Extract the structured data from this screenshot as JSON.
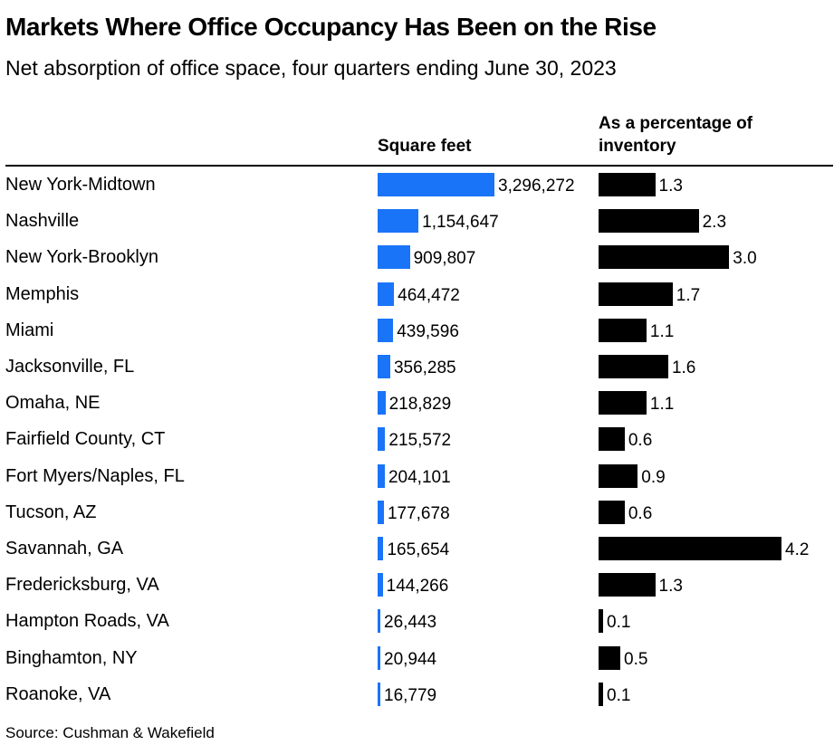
{
  "header": {
    "title": "Markets Where Office Occupancy Has Been on the Rise",
    "subtitle": "Net absorption of office space, four quarters ending June 30, 2023"
  },
  "columns": {
    "square_feet": "Square feet",
    "percentage_line1": "As a percentage of",
    "percentage_line2": "inventory"
  },
  "colors": {
    "square_feet_bar": "#1a74f8",
    "percentage_bar": "#000000"
  },
  "footer": {
    "source": "Source: Cushman & Wakefield"
  },
  "chart_data": {
    "type": "bar",
    "orientation": "horizontal",
    "title": "Markets Where Office Occupancy Has Been on the Rise",
    "subtitle": "Net absorption of office space, four quarters ending June 30, 2023",
    "categories": [
      "New York-Midtown",
      "Nashville",
      "New York-Brooklyn",
      "Memphis",
      "Miami",
      "Jacksonville, FL",
      "Omaha, NE",
      "Fairfield County, CT",
      "Fort Myers/Naples, FL",
      "Tucson, AZ",
      "Savannah, GA",
      "Fredericksburg, VA",
      "Hampton Roads, VA",
      "Binghamton, NY",
      "Roanoke, VA"
    ],
    "series": [
      {
        "name": "Square feet",
        "values": [
          3296272,
          1154647,
          909807,
          464472,
          439596,
          356285,
          218829,
          215572,
          204101,
          177678,
          165654,
          144266,
          26443,
          20944,
          16779
        ],
        "labels": [
          "3,296,272",
          "1,154,647",
          "909,807",
          "464,472",
          "439,596",
          "356,285",
          "218,829",
          "215,572",
          "204,101",
          "177,678",
          "165,654",
          "144,266",
          "26,443",
          "20,944",
          "16,779"
        ]
      },
      {
        "name": "As a percentage of inventory",
        "values": [
          1.3,
          2.3,
          3.0,
          1.7,
          1.1,
          1.6,
          1.1,
          0.6,
          0.9,
          0.6,
          4.2,
          1.3,
          0.1,
          0.5,
          0.1
        ],
        "labels": [
          "1.3",
          "2.3",
          "3.0",
          "1.7",
          "1.1",
          "1.6",
          "1.1",
          "0.6",
          "0.9",
          "0.6",
          "4.2",
          "1.3",
          "0.1",
          "0.5",
          "0.1"
        ]
      }
    ],
    "grid": false,
    "legend": "none",
    "source": "Source: Cushman & Wakefield"
  }
}
